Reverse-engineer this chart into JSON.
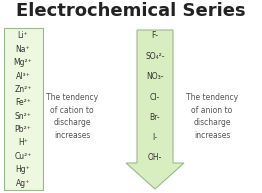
{
  "title": "Electrochemical Series",
  "title_fontsize": 13,
  "title_color": "#222222",
  "background_color": "#ffffff",
  "cation_list": [
    "Li⁺",
    "Na⁺",
    "Mg²⁺",
    "Al³⁺",
    "Zn²⁺",
    "Fe²⁺",
    "Sn²⁺",
    "Pb²⁺",
    "H⁺",
    "Cu²⁺",
    "Hg⁺",
    "Ag⁺"
  ],
  "anion_list": [
    "F-",
    "SO₄²-",
    "NO₃-",
    "Cl-",
    "Br-",
    "I-",
    "OH-"
  ],
  "box_color": "#eef7e0",
  "box_edge_color": "#99bb88",
  "arrow_color": "#d8eec0",
  "arrow_edge_color": "#99bb88",
  "cation_text": "The tendency\nof cation to\ndischarge\nincreases",
  "anion_text": "The tendency\nof anion to\ndischarge\nincreases",
  "text_color": "#555555",
  "text_fontsize": 5.5,
  "ion_fontsize": 5.5,
  "fig_w": 2.62,
  "fig_h": 1.93,
  "dpi": 100
}
